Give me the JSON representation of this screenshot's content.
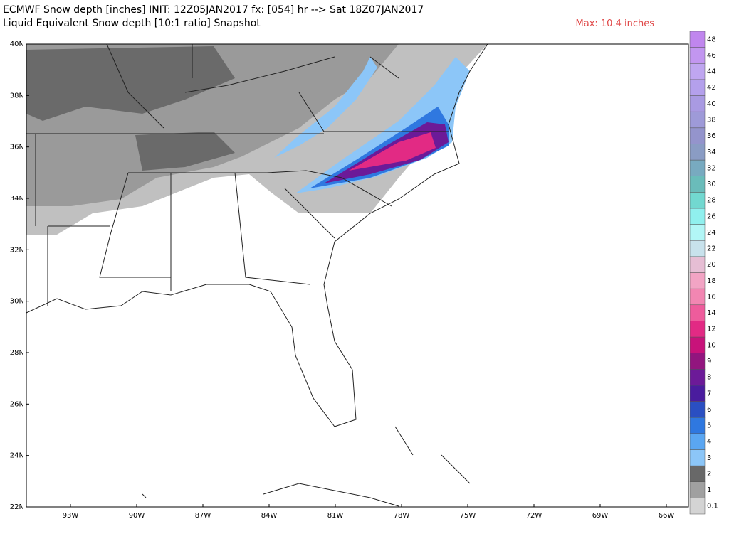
{
  "header": {
    "title": "ECMWF Snow depth [inches] INIT: 12Z05JAN2017 fx: [054] hr --> Sat 18Z07JAN2017",
    "subtitle": "Liquid Equivalent Snow depth [10:1 ratio] Snapshot",
    "max_label": "Max: 10.4 inches"
  },
  "map": {
    "lat_labels": [
      "40N",
      "38N",
      "36N",
      "34N",
      "32N",
      "30N",
      "28N",
      "26N",
      "24N",
      "22N"
    ],
    "lon_labels": [
      "93W",
      "90W",
      "87W",
      "84W",
      "81W",
      "78W",
      "75W",
      "72W",
      "69W",
      "66W"
    ]
  },
  "colorbar": {
    "levels": [
      {
        "value": 0.1,
        "color": "#d4d4d4"
      },
      {
        "value": 1,
        "color": "#a0a0a0"
      },
      {
        "value": 2,
        "color": "#686868"
      },
      {
        "value": 3,
        "color": "#8cc6f8"
      },
      {
        "value": 4,
        "color": "#5aa6f2"
      },
      {
        "value": 5,
        "color": "#2f78e0"
      },
      {
        "value": 6,
        "color": "#2a4fc2"
      },
      {
        "value": 7,
        "color": "#4a1c9e"
      },
      {
        "value": 8,
        "color": "#6c1a98"
      },
      {
        "value": 9,
        "color": "#92157e"
      },
      {
        "value": 10,
        "color": "#c8127a"
      },
      {
        "value": 12,
        "color": "#e22a84"
      },
      {
        "value": 14,
        "color": "#ee5c9c"
      },
      {
        "value": 16,
        "color": "#f286b2"
      },
      {
        "value": 18,
        "color": "#f2a4c4"
      },
      {
        "value": 20,
        "color": "#e6bed4"
      },
      {
        "value": 22,
        "color": "#c8e2ec"
      },
      {
        "value": 24,
        "color": "#b2f6f6"
      },
      {
        "value": 26,
        "color": "#90f0ee"
      },
      {
        "value": 28,
        "color": "#72d8d0"
      },
      {
        "value": 30,
        "color": "#6abcba"
      },
      {
        "value": 32,
        "color": "#78aac0"
      },
      {
        "value": 34,
        "color": "#8a9cc4"
      },
      {
        "value": 36,
        "color": "#9494cc"
      },
      {
        "value": 38,
        "color": "#9e9ad8"
      },
      {
        "value": 40,
        "color": "#a99ae2"
      },
      {
        "value": 42,
        "color": "#b4a0ec"
      },
      {
        "value": 44,
        "color": "#bfa6f0"
      },
      {
        "value": 46,
        "color": "#c296f0"
      },
      {
        "value": 48,
        "color": "#c086ee"
      }
    ]
  }
}
